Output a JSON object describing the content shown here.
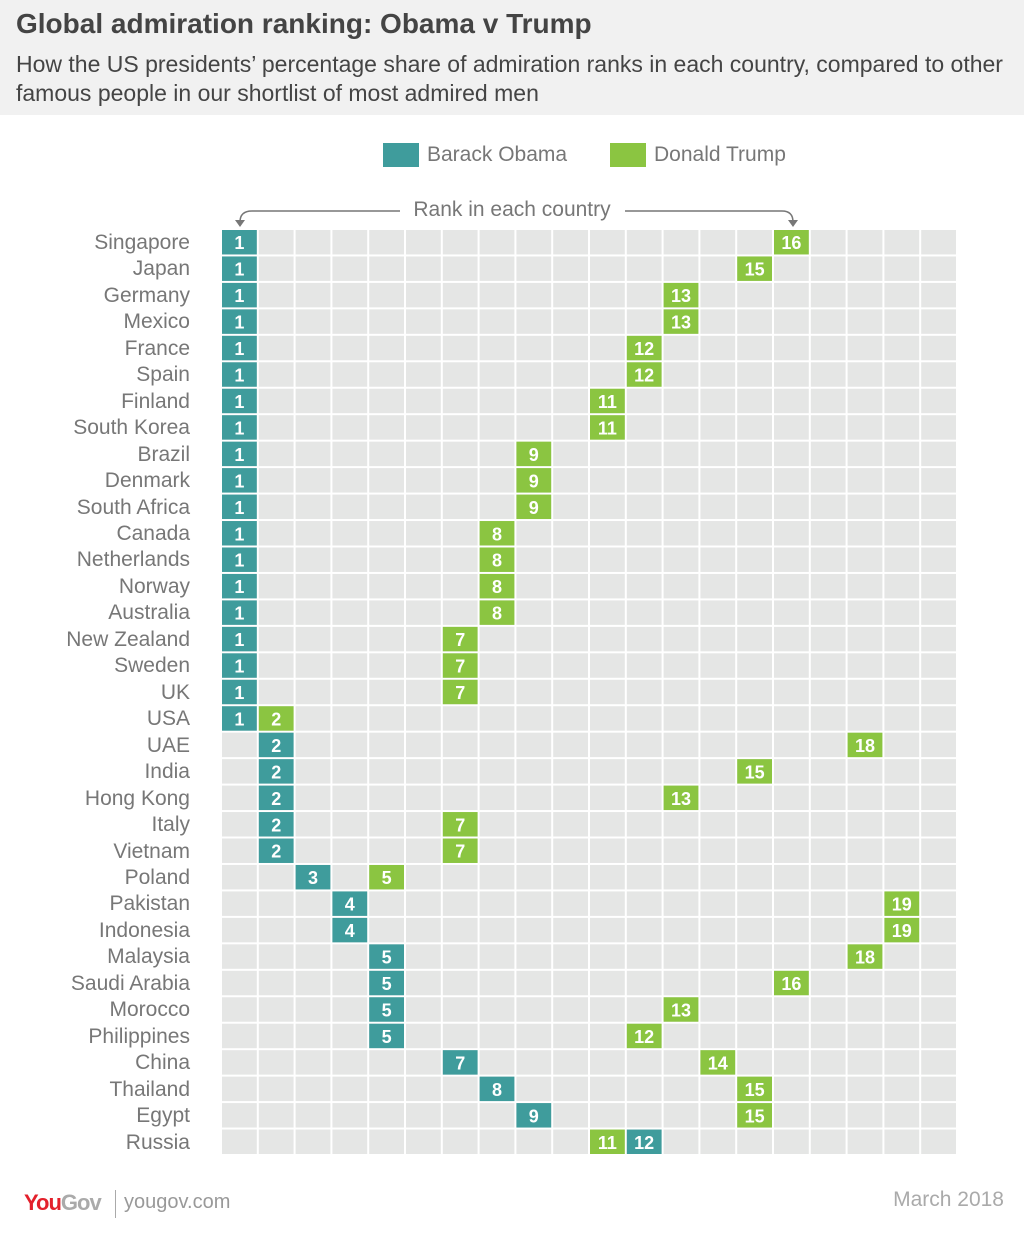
{
  "header": {
    "title": "Global admiration ranking: Obama v Trump",
    "subtitle": "How the US presidents’ percentage share of admiration ranks in each country, compared to other famous people in our shortlist of most admired men"
  },
  "footer": {
    "logo_you": "You",
    "logo_gov": "Gov",
    "site": "yougov.com",
    "date": "March 2018"
  },
  "chart_data": {
    "type": "table",
    "axis_label": "Rank in each country",
    "rank_range": [
      1,
      20
    ],
    "legend": [
      {
        "name": "Barack Obama",
        "color": "#3f9c9c"
      },
      {
        "name": "Donald Trump",
        "color": "#8bc541"
      }
    ],
    "cell_color": "#e5e6e5",
    "countries": [
      "Singapore",
      "Japan",
      "Germany",
      "Mexico",
      "France",
      "Spain",
      "Finland",
      "South Korea",
      "Brazil",
      "Denmark",
      "South Africa",
      "Canada",
      "Netherlands",
      "Norway",
      "Australia",
      "New Zealand",
      "Sweden",
      "UK",
      "USA",
      "UAE",
      "India",
      "Hong Kong",
      "Italy",
      "Vietnam",
      "Poland",
      "Pakistan",
      "Indonesia",
      "Malaysia",
      "Saudi Arabia",
      "Morocco",
      "Philippines",
      "China",
      "Thailand",
      "Egypt",
      "Russia"
    ],
    "series": [
      {
        "name": "Barack Obama",
        "values": [
          1,
          1,
          1,
          1,
          1,
          1,
          1,
          1,
          1,
          1,
          1,
          1,
          1,
          1,
          1,
          1,
          1,
          1,
          1,
          2,
          2,
          2,
          2,
          2,
          3,
          4,
          4,
          5,
          5,
          5,
          5,
          7,
          8,
          9,
          12
        ]
      },
      {
        "name": "Donald Trump",
        "values": [
          16,
          15,
          13,
          13,
          12,
          12,
          11,
          11,
          9,
          9,
          9,
          8,
          8,
          8,
          8,
          7,
          7,
          7,
          2,
          18,
          15,
          13,
          7,
          7,
          5,
          19,
          19,
          18,
          16,
          13,
          12,
          14,
          15,
          15,
          11
        ]
      }
    ]
  }
}
